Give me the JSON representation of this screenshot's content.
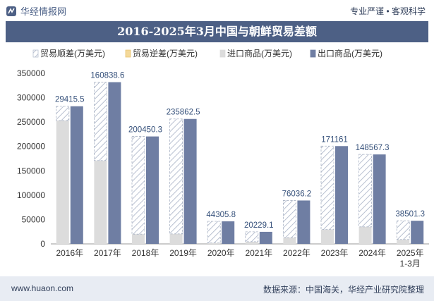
{
  "header": {
    "brand": "华经情报网",
    "tagline": "专业严谨 • 客观科学",
    "title": "2016-2025年3月中国与朝鲜贸易差额"
  },
  "footer": {
    "url": "www.huaon.com",
    "source": "数据来源：中国海关，华经产业研究院整理"
  },
  "colors": {
    "import": "#dcdcdc",
    "export": "#6f7ea3",
    "hatch": "#b8c0d0",
    "label": "#35507a"
  },
  "chart_data": {
    "type": "bar",
    "title": "2016-2025年3月中国与朝鲜贸易差额",
    "categories": [
      "2016年",
      "2017年",
      "2018年",
      "2019年",
      "2020年",
      "2021年",
      "2022年",
      "2023年",
      "2024年",
      "2025年\n1-3月"
    ],
    "series": [
      {
        "name": "贸易顺差(万美元)",
        "values": [
          29415.5,
          160838.6,
          200450.3,
          235862.5,
          44305.8,
          20229.1,
          76036.2,
          171161,
          148567.3,
          38501.3
        ]
      },
      {
        "name": "贸易逆差(万美元)",
        "values": [
          0,
          0,
          0,
          0,
          0,
          0,
          0,
          0,
          0,
          0
        ]
      },
      {
        "name": "进口商品(万美元)",
        "values": [
          253000,
          171000,
          20000,
          20500,
          2000,
          4500,
          13000,
          29500,
          35000,
          9000
        ]
      },
      {
        "name": "出口商品(万美元)",
        "values": [
          282415.5,
          331838.6,
          220450.3,
          256362.5,
          46305.8,
          24729.1,
          89036.2,
          200661,
          183567.3,
          47501.3
        ]
      }
    ],
    "data_labels": [
      "29415.5",
      "160838.6",
      "200450.3",
      "235862.5",
      "44305.8",
      "20229.1",
      "76036.2",
      "171161",
      "148567.3",
      "38501.3"
    ],
    "ylim": [
      0,
      350000
    ],
    "yticks": [
      0,
      50000,
      100000,
      150000,
      200000,
      250000,
      300000,
      350000
    ],
    "xlabel": "",
    "ylabel": "",
    "legend_position": "top-center",
    "grid": false
  }
}
